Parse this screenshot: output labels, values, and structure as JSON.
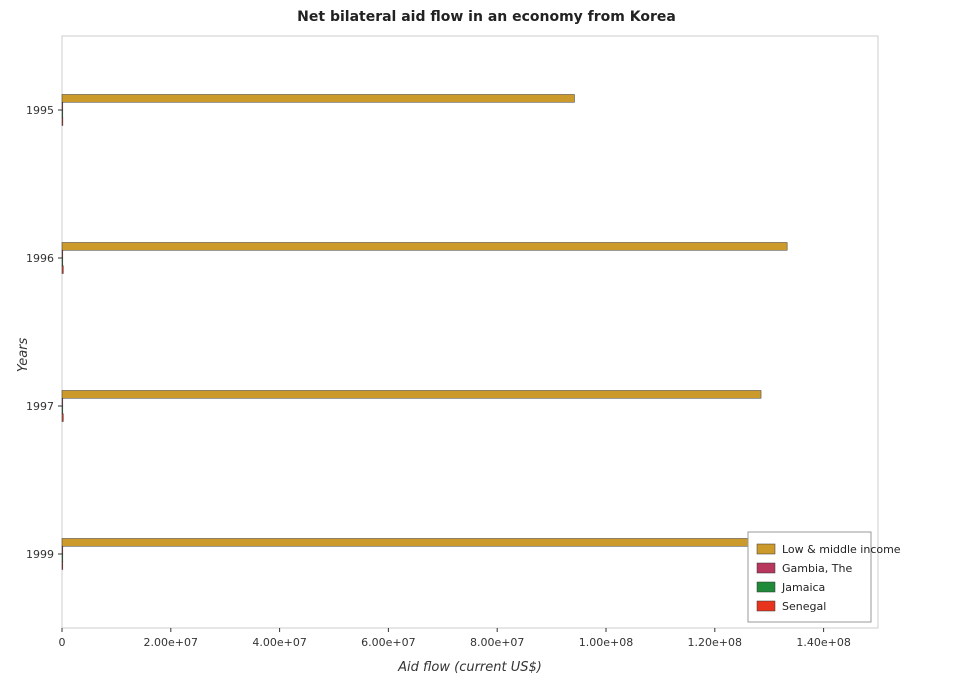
{
  "chart_data": {
    "type": "bar",
    "orientation": "horizontal",
    "title": "Net bilateral aid flow in an economy from Korea",
    "xlabel": "Aid flow (current US$)",
    "ylabel": "Years",
    "categories": [
      "1995",
      "1996",
      "1997",
      "1999"
    ],
    "xlim": [
      0,
      150000000
    ],
    "xticks": [
      0,
      20000000,
      40000000,
      60000000,
      80000000,
      100000000,
      120000000,
      140000000
    ],
    "xtick_labels": [
      "0",
      "2.00e+07",
      "4.00e+07",
      "6.00e+07",
      "8.00e+07",
      "1.00e+08",
      "1.20e+08",
      "1.40e+08"
    ],
    "grid": false,
    "legend_position": "bottom-right",
    "series": [
      {
        "name": "Low & middle income",
        "color": "#cc9a2a",
        "values": [
          94200000,
          133300000,
          128500000,
          142200000
        ]
      },
      {
        "name": "Gambia, The",
        "color": "#b8375f",
        "values": [
          20000,
          30000,
          60000,
          60000
        ]
      },
      {
        "name": "Jamaica",
        "color": "#1f8a3a",
        "values": [
          120000,
          100000,
          100000,
          120000
        ]
      },
      {
        "name": "Senegal",
        "color": "#e8341c",
        "values": [
          160000,
          240000,
          240000,
          40000
        ]
      }
    ]
  }
}
